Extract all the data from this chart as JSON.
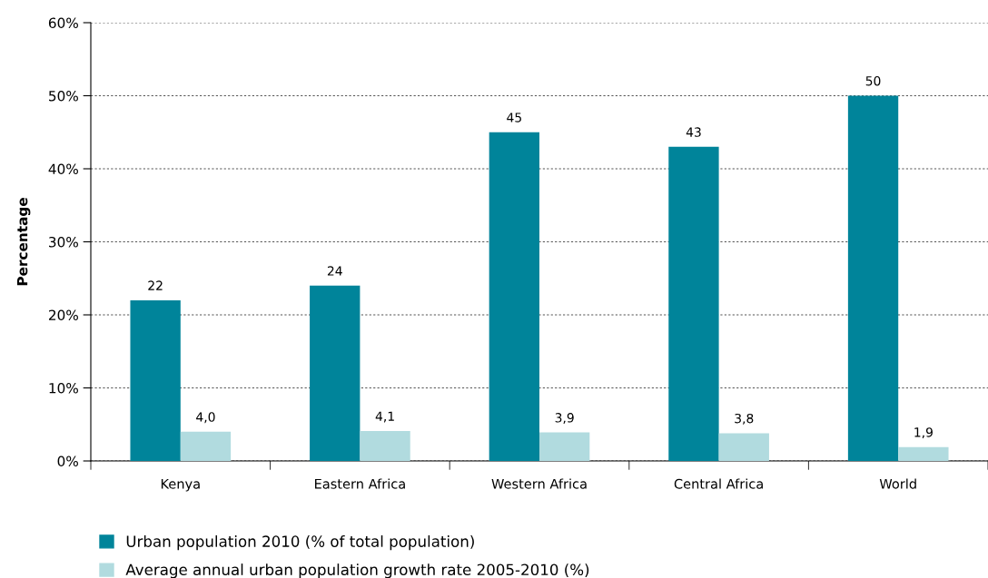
{
  "chart_data": {
    "type": "bar",
    "ylabel": "Percentage",
    "categories": [
      "Kenya",
      "Eastern Africa",
      "Western Africa",
      "Central Africa",
      "World"
    ],
    "series": [
      {
        "name": "Urban population 2010 (% of total population)",
        "color": "#00849a",
        "values": [
          22,
          24,
          45,
          43,
          50
        ],
        "value_labels": [
          "22",
          "24",
          "45",
          "43",
          "50"
        ]
      },
      {
        "name": "Average annual urban population growth rate 2005-2010 (%)",
        "color": "#b1dbdf",
        "values": [
          4.0,
          4.1,
          3.9,
          3.8,
          1.9
        ],
        "value_labels": [
          "4,0",
          "4,1",
          "3,9",
          "3,8",
          "1,9"
        ]
      }
    ],
    "ylim": [
      0,
      60
    ],
    "yticks": [
      {
        "value": 0,
        "label": "0%"
      },
      {
        "value": 10,
        "label": "10%"
      },
      {
        "value": 20,
        "label": "20%"
      },
      {
        "value": 30,
        "label": "30%"
      },
      {
        "value": 40,
        "label": "40%"
      },
      {
        "value": 50,
        "label": "50%"
      },
      {
        "value": 60,
        "label": "60%"
      }
    ],
    "grid": "y",
    "legend": "bottom"
  }
}
